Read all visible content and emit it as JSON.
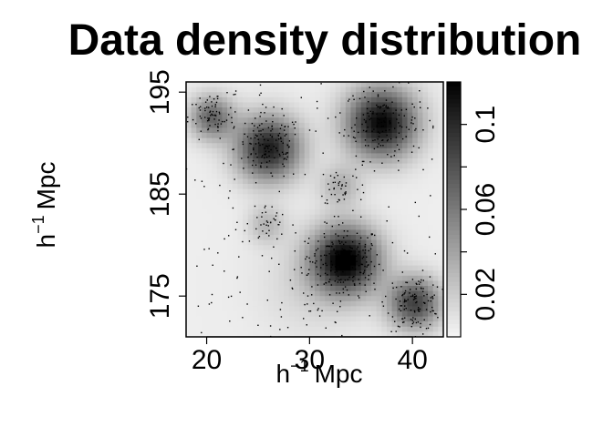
{
  "chart_data": {
    "type": "heatmap",
    "title": "Data density distribution",
    "xlabel": "h",
    "xlabel_sup": "−1",
    "xlabel_unit": "Mpc",
    "ylabel": "h",
    "ylabel_sup": "−1",
    "ylabel_unit": "Mpc",
    "xlim": [
      18,
      43
    ],
    "ylim": [
      171,
      196
    ],
    "x_ticks": [
      20,
      30,
      40
    ],
    "y_ticks": [
      175,
      185,
      195
    ],
    "colorbar": {
      "range": [
        0,
        0.12
      ],
      "ticks": [
        0.02,
        0.06,
        0.1
      ],
      "tick_labels": [
        "0.02",
        "0.06",
        "0.1"
      ],
      "low_color": "#ffffff",
      "high_color": "#000000"
    },
    "clusters": [
      {
        "x": 33.5,
        "y": 178.5,
        "sigma": 2.3,
        "weight": 1.0,
        "points": 170
      },
      {
        "x": 37.0,
        "y": 192.0,
        "sigma": 2.4,
        "weight": 0.95,
        "points": 150
      },
      {
        "x": 26.0,
        "y": 189.5,
        "sigma": 2.2,
        "weight": 0.85,
        "points": 130
      },
      {
        "x": 40.2,
        "y": 174.3,
        "sigma": 1.8,
        "weight": 0.7,
        "points": 120
      },
      {
        "x": 20.5,
        "y": 192.5,
        "sigma": 1.5,
        "weight": 0.55,
        "points": 60
      },
      {
        "x": 33.0,
        "y": 185.8,
        "sigma": 1.4,
        "weight": 0.25,
        "points": 40
      },
      {
        "x": 25.8,
        "y": 182.0,
        "sigma": 1.3,
        "weight": 0.22,
        "points": 35
      },
      {
        "x": 30.0,
        "y": 176.0,
        "sigma": 3.5,
        "weight": 0.1,
        "points": 50
      }
    ],
    "background_points": 140
  }
}
